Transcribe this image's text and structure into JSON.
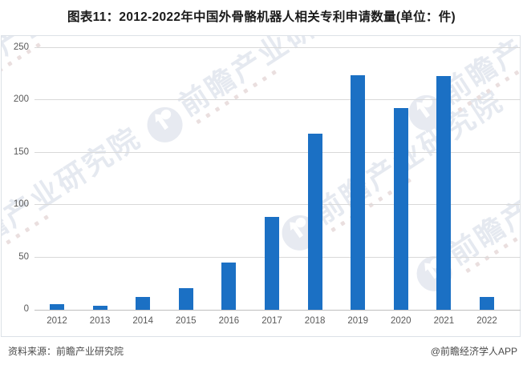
{
  "title": "图表11：2012-2022年中国外骨骼机器人相关专利申请数量(单位：件)",
  "footer": {
    "source": "资料来源：前瞻产业研究院",
    "credit": "@前瞻经济学人APP"
  },
  "watermark": {
    "text": "前瞻产业研究院"
  },
  "colors": {
    "bar": "#1b70c4",
    "gridline": "#d9d9d9",
    "axis_line": "#bfbfbf",
    "axis_text": "#595959",
    "panel_border": "#dce1e7",
    "watermark": "#e5e9f0"
  },
  "chart_data": {
    "type": "bar",
    "title": "图表11：2012-2022年中国外骨骼机器人相关专利申请数量(单位：件)",
    "unit": "件",
    "categories": [
      "2012",
      "2013",
      "2014",
      "2015",
      "2016",
      "2017",
      "2018",
      "2019",
      "2020",
      "2021",
      "2022"
    ],
    "values": [
      5,
      4,
      12,
      21,
      45,
      89,
      168,
      224,
      193,
      223,
      12
    ],
    "xlabel": "",
    "ylabel": "",
    "ylim": [
      0,
      260
    ],
    "yticks": [
      0,
      50,
      100,
      150,
      200,
      250
    ],
    "grid": true,
    "legend_position": "none",
    "bar_color": "#1b70c4"
  }
}
